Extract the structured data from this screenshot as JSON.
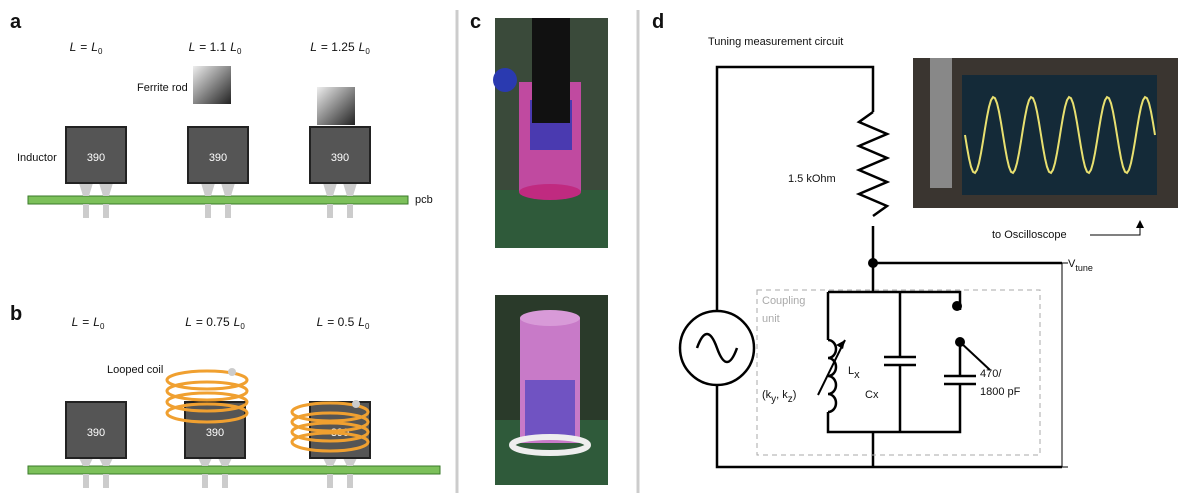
{
  "panel_a": {
    "label": "a",
    "conditions": [
      {
        "var": "L",
        "op": "=",
        "rhs": "L",
        "sub": "0"
      },
      {
        "var": "L",
        "op": "= 1.1",
        "rhs": "L",
        "sub": "0"
      },
      {
        "var": "L",
        "op": "= 1.25",
        "rhs": "L",
        "sub": "0"
      }
    ],
    "ferrite_label": "Ferrite rod",
    "inductor_label": "Inductor",
    "pcb_label": "pcb",
    "chips": [
      "390",
      "390",
      "390"
    ]
  },
  "panel_b": {
    "label": "b",
    "conditions": [
      {
        "var": "L",
        "op": "=",
        "rhs": "L",
        "sub": "0"
      },
      {
        "var": "L",
        "op": "= 0.75",
        "rhs": "L",
        "sub": "0"
      },
      {
        "var": "L",
        "op": "= 0.5",
        "rhs": "L",
        "sub": "0"
      }
    ],
    "coil_label": "Looped coil",
    "chips": [
      "390",
      "390",
      "390"
    ]
  },
  "panel_c": {
    "label": "c"
  },
  "panel_d": {
    "label": "d",
    "title": "Tuning measurement circuit",
    "resistor": "1.5 kOhm",
    "scope": "to Oscilloscope",
    "vtune": {
      "main": "V",
      "sub": "tune"
    },
    "coupling": [
      "Coupling",
      "unit"
    ],
    "inductor": {
      "main": "L",
      "sub": "x"
    },
    "k": {
      "open": "(k",
      "y": "y",
      "mid": ", k",
      "z": "z",
      "close": ")"
    },
    "capacitor": {
      "main": "C",
      "sub": "x"
    },
    "switch_cap": [
      "470/",
      "1800 pF"
    ]
  }
}
